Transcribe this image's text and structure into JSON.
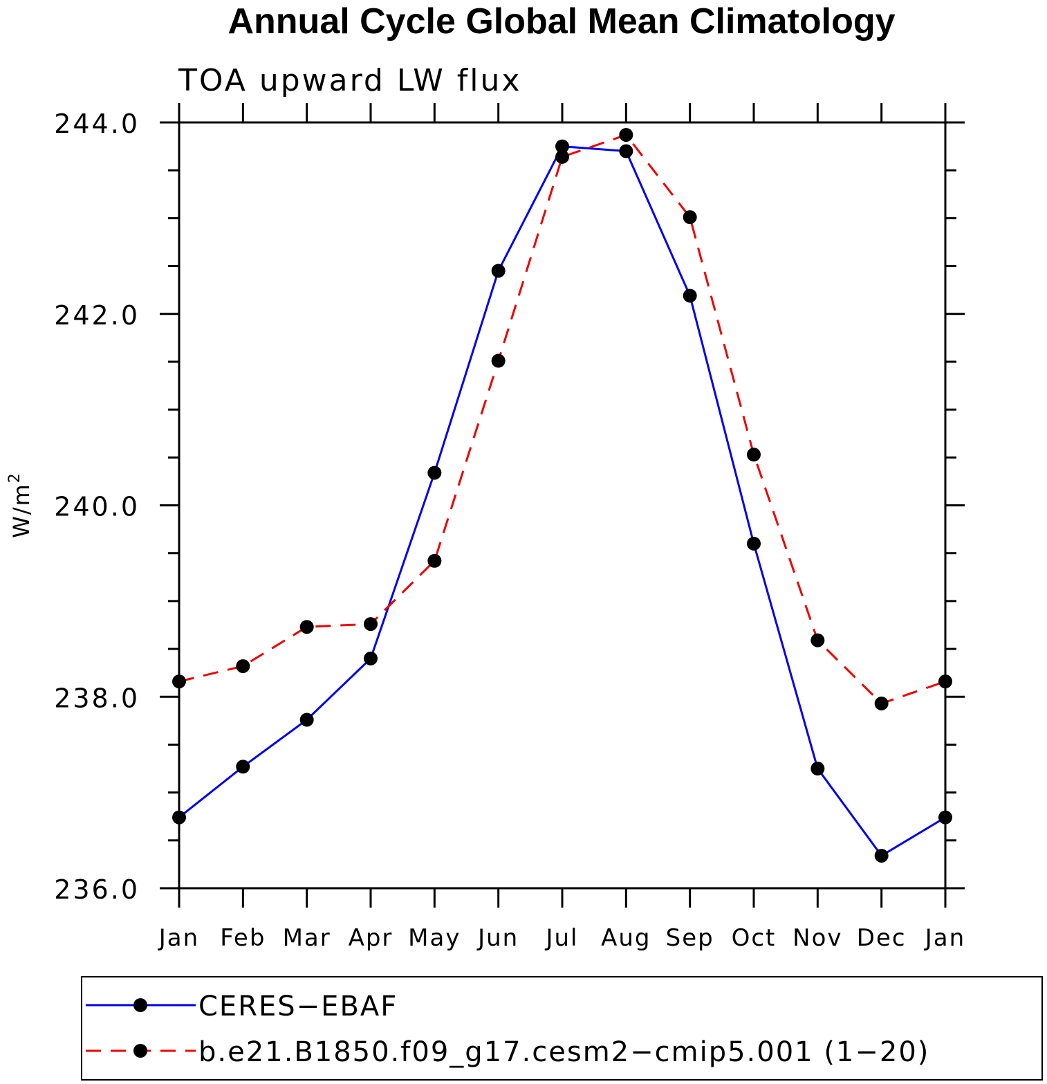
{
  "chart_data": {
    "type": "line",
    "title": "Annual Cycle Global Mean Climatology",
    "subtitle": "TOA upward LW flux",
    "ylabel": "W/m",
    "ylabel_superscript": "2",
    "xlabel": "",
    "categories": [
      "Jan",
      "Feb",
      "Mar",
      "Apr",
      "May",
      "Jun",
      "Jul",
      "Aug",
      "Sep",
      "Oct",
      "Nov",
      "Dec",
      "Jan"
    ],
    "ylim": [
      236.0,
      244.0
    ],
    "yticks": [
      236.0,
      238.0,
      240.0,
      242.0,
      244.0
    ],
    "ytick_labels": [
      "236.0",
      "238.0",
      "240.0",
      "242.0",
      "244.0"
    ],
    "series": [
      {
        "name": "CERES−EBAF",
        "color": "#0000ee",
        "style": "solid",
        "values": [
          236.74,
          237.27,
          237.76,
          238.4,
          240.34,
          242.45,
          243.75,
          243.7,
          242.19,
          239.6,
          237.25,
          236.34,
          236.74
        ]
      },
      {
        "name": "b.e21.B1850.f09_g17.cesm2−cmip5.001 (1−20)",
        "color": "#ee0000",
        "style": "dashed",
        "values": [
          238.16,
          238.32,
          238.73,
          238.76,
          239.42,
          241.51,
          243.64,
          243.87,
          243.01,
          240.53,
          238.59,
          237.93,
          238.16
        ]
      }
    ],
    "legend_position": "bottom"
  }
}
